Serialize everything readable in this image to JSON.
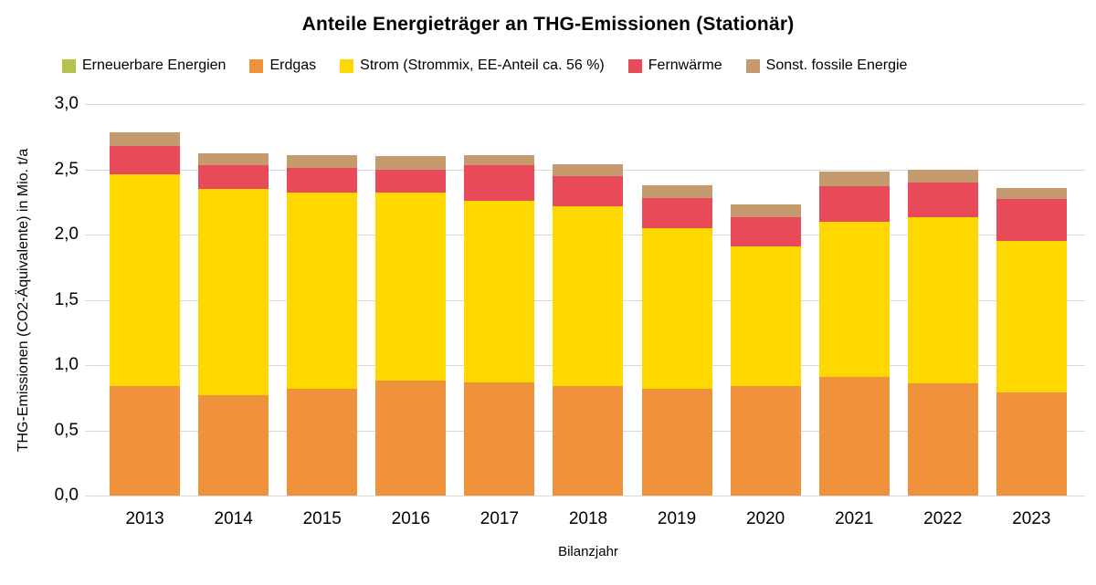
{
  "chart_data": {
    "type": "bar",
    "stacked": true,
    "title": "Anteile Energieträger an THG-Emissionen (Stationär)",
    "xlabel": "Bilanzjahr",
    "ylabel": "THG-Emissionen (CO2-Äquivalente) in Mio. t/a",
    "ylim": [
      0,
      3.0
    ],
    "ytick_labels_bottom_to_top": [
      "0,0",
      "0,5",
      "1,0",
      "1,5",
      "2,0",
      "2,5",
      "3,0"
    ],
    "grid": true,
    "gridline_color": "#d9d9d9",
    "text_color": "#000000",
    "legend_position": "top",
    "categories": [
      "2013",
      "2014",
      "2015",
      "2016",
      "2017",
      "2018",
      "2019",
      "2020",
      "2021",
      "2022",
      "2023"
    ],
    "series": [
      {
        "name": "Erneuerbare Energien",
        "color": "#b3c34d",
        "values": [
          0,
          0,
          0,
          0,
          0,
          0,
          0,
          0,
          0,
          0,
          0
        ]
      },
      {
        "name": "Erdgas",
        "color": "#f0913c",
        "values": [
          0.84,
          0.77,
          0.82,
          0.88,
          0.87,
          0.84,
          0.82,
          0.84,
          0.91,
          0.86,
          0.79
        ]
      },
      {
        "name": "Strom (Strommix, EE-Anteil ca. 56 %)",
        "color": "#ffd800",
        "values": [
          1.62,
          1.58,
          1.5,
          1.44,
          1.39,
          1.38,
          1.23,
          1.07,
          1.19,
          1.27,
          1.16
        ]
      },
      {
        "name": "Fernwärme",
        "color": "#e84a5a",
        "values": [
          0.22,
          0.18,
          0.19,
          0.18,
          0.27,
          0.23,
          0.23,
          0.22,
          0.27,
          0.27,
          0.32
        ]
      },
      {
        "name": "Sonst. fossile Energie",
        "color": "#c59a6e",
        "values": [
          0.1,
          0.09,
          0.1,
          0.1,
          0.08,
          0.09,
          0.1,
          0.1,
          0.11,
          0.1,
          0.09
        ]
      }
    ],
    "totals": [
      2.78,
      2.62,
      2.61,
      2.6,
      2.61,
      2.54,
      2.38,
      2.23,
      2.48,
      2.5,
      2.36
    ]
  }
}
